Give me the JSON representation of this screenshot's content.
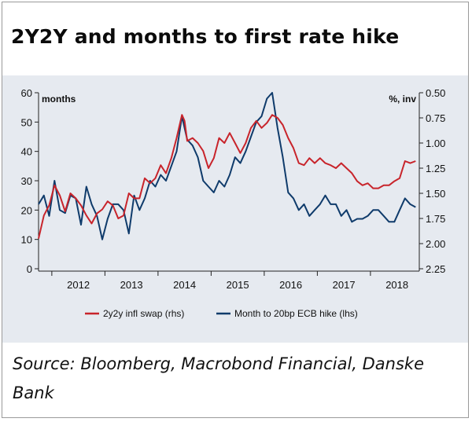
{
  "header": {
    "title": "2Y2Y and months to first rate hike"
  },
  "footer": {
    "source": "Source: Bloomberg, Macrobond Financial, Danske Bank"
  },
  "chart_data": {
    "type": "line",
    "title": "2Y2Y and months to first rate hike",
    "left_axis": {
      "label": "months",
      "min": 0,
      "max": 60,
      "ticks": [
        "0",
        "10",
        "20",
        "30",
        "40",
        "50",
        "60"
      ]
    },
    "right_axis": {
      "label": "%, inv",
      "min": 0.5,
      "max": 2.25,
      "inverted": true,
      "ticks": [
        "0.50",
        "0.75",
        "1.00",
        "1.25",
        "1.50",
        "1.75",
        "2.00",
        "2.25"
      ]
    },
    "x_axis": {
      "min": 2011.75,
      "max": 2018.92,
      "year_labels": [
        "2012",
        "2013",
        "2014",
        "2015",
        "2016",
        "2017",
        "2018"
      ]
    },
    "grid": false,
    "legend_position": "bottom",
    "colors": {
      "infl": "#c8242b",
      "months": "#0f3b6b",
      "axis": "#222222",
      "panel": "#e6eaf0"
    },
    "series": [
      {
        "name": "2y2y infl swap (rhs)",
        "axis": "right",
        "x": [
          2011.75,
          2011.85,
          2011.95,
          2012.05,
          2012.15,
          2012.25,
          2012.35,
          2012.45,
          2012.55,
          2012.65,
          2012.75,
          2012.85,
          2012.95,
          2013.05,
          2013.15,
          2013.25,
          2013.35,
          2013.45,
          2013.55,
          2013.65,
          2013.75,
          2013.85,
          2013.95,
          2014.05,
          2014.15,
          2014.25,
          2014.35,
          2014.45,
          2014.5,
          2014.55,
          2014.65,
          2014.75,
          2014.85,
          2014.95,
          2015.05,
          2015.15,
          2015.25,
          2015.35,
          2015.45,
          2015.55,
          2015.65,
          2015.75,
          2015.85,
          2015.95,
          2016.05,
          2016.15,
          2016.25,
          2016.35,
          2016.45,
          2016.55,
          2016.65,
          2016.75,
          2016.85,
          2016.95,
          2017.05,
          2017.15,
          2017.25,
          2017.35,
          2017.45,
          2017.55,
          2017.65,
          2017.75,
          2017.85,
          2017.95,
          2018.05,
          2018.15,
          2018.25,
          2018.35,
          2018.45,
          2018.55,
          2018.65,
          2018.75,
          2018.85
        ],
        "values": [
          1.95,
          1.72,
          1.62,
          1.42,
          1.52,
          1.68,
          1.5,
          1.55,
          1.62,
          1.72,
          1.8,
          1.7,
          1.66,
          1.58,
          1.62,
          1.75,
          1.72,
          1.5,
          1.55,
          1.55,
          1.35,
          1.4,
          1.35,
          1.22,
          1.3,
          1.15,
          0.95,
          0.72,
          0.78,
          0.98,
          0.95,
          1.0,
          1.08,
          1.25,
          1.15,
          0.95,
          1.0,
          0.9,
          1.0,
          1.1,
          1.0,
          0.85,
          0.78,
          0.85,
          0.8,
          0.72,
          0.75,
          0.82,
          0.95,
          1.05,
          1.2,
          1.22,
          1.15,
          1.2,
          1.15,
          1.2,
          1.22,
          1.25,
          1.2,
          1.25,
          1.3,
          1.38,
          1.42,
          1.4,
          1.45,
          1.45,
          1.42,
          1.42,
          1.38,
          1.35,
          1.18,
          1.2,
          1.18
        ]
      },
      {
        "name": "Month to 20bp ECB hike (lhs)",
        "axis": "left",
        "x": [
          2011.75,
          2011.85,
          2011.95,
          2012.05,
          2012.15,
          2012.25,
          2012.35,
          2012.45,
          2012.55,
          2012.65,
          2012.75,
          2012.85,
          2012.95,
          2013.05,
          2013.15,
          2013.25,
          2013.35,
          2013.45,
          2013.55,
          2013.65,
          2013.75,
          2013.85,
          2013.95,
          2014.05,
          2014.15,
          2014.25,
          2014.35,
          2014.45,
          2014.5,
          2014.55,
          2014.65,
          2014.75,
          2014.85,
          2014.95,
          2015.05,
          2015.15,
          2015.25,
          2015.35,
          2015.45,
          2015.55,
          2015.65,
          2015.75,
          2015.85,
          2015.95,
          2016.05,
          2016.15,
          2016.25,
          2016.35,
          2016.45,
          2016.55,
          2016.65,
          2016.75,
          2016.85,
          2016.95,
          2017.05,
          2017.15,
          2017.25,
          2017.35,
          2017.45,
          2017.55,
          2017.65,
          2017.75,
          2017.85,
          2017.95,
          2018.05,
          2018.15,
          2018.25,
          2018.35,
          2018.45,
          2018.55,
          2018.65,
          2018.75,
          2018.85
        ],
        "values": [
          22,
          25,
          18,
          30,
          20,
          19,
          25,
          24,
          15,
          28,
          22,
          18,
          10,
          17,
          22,
          22,
          20,
          12,
          25,
          20,
          24,
          30,
          28,
          32,
          30,
          35,
          40,
          52,
          48,
          44,
          42,
          38,
          30,
          28,
          26,
          30,
          28,
          32,
          38,
          36,
          40,
          45,
          50,
          52,
          58,
          60,
          48,
          38,
          26,
          24,
          20,
          22,
          18,
          20,
          22,
          25,
          22,
          22,
          18,
          20,
          16,
          17,
          17,
          18,
          20,
          20,
          18,
          16,
          16,
          20,
          24,
          22,
          21
        ]
      }
    ]
  }
}
